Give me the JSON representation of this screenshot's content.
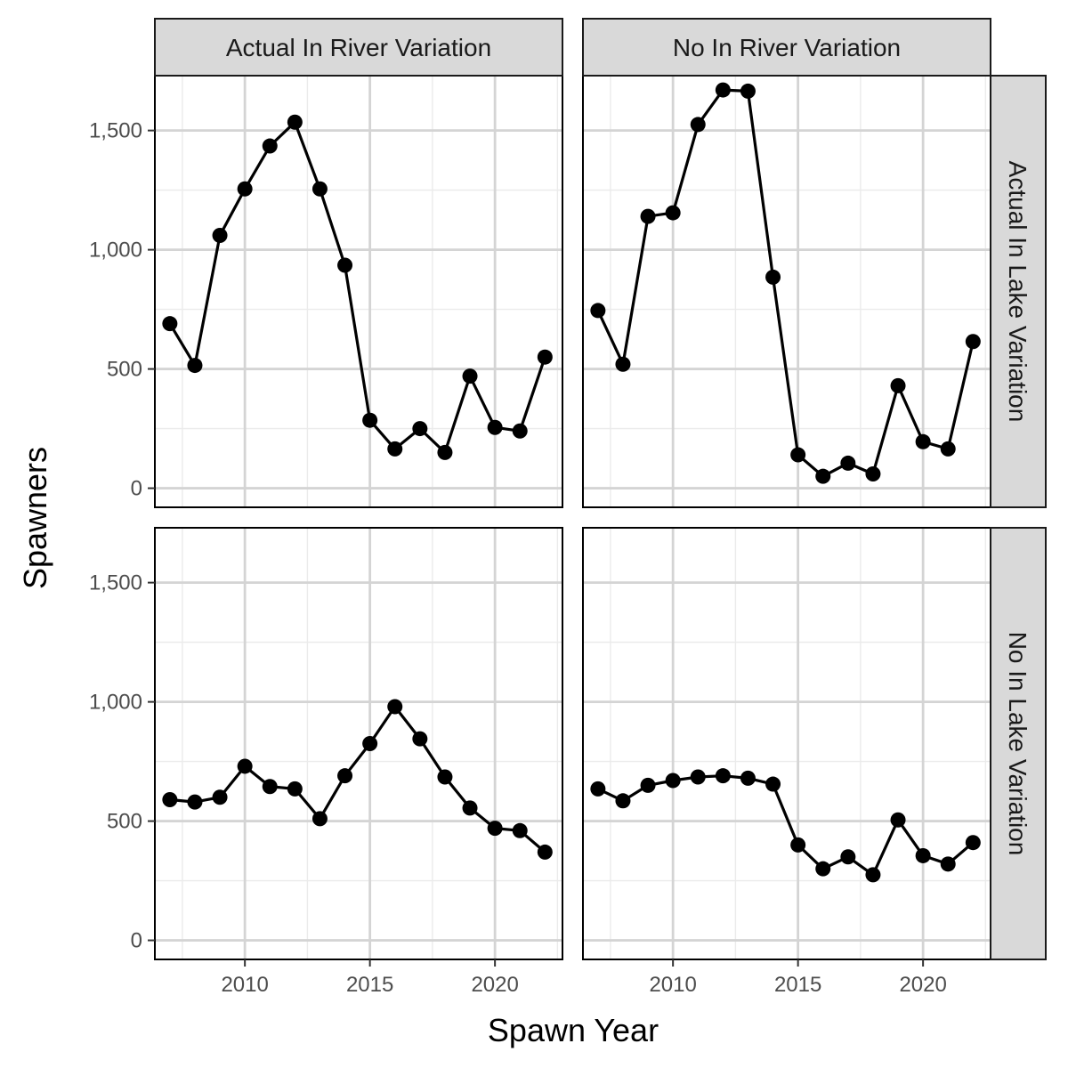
{
  "chart_data": {
    "type": "line",
    "facet": "grid",
    "xlabel": "Spawn Year",
    "ylabel": "Spawners",
    "xlim": [
      2006.4,
      2022.7
    ],
    "ylim": [
      -80,
      1730
    ],
    "x_ticks": [
      2010,
      2015,
      2020
    ],
    "x_tick_labels": [
      "2010",
      "2015",
      "2020"
    ],
    "y_ticks": [
      0,
      500,
      1000,
      1500
    ],
    "y_tick_labels": [
      "0",
      "500",
      "1,000",
      "1,500"
    ],
    "grid": true,
    "col_strips": [
      "Actual In River Variation",
      "No In River Variation"
    ],
    "row_strips": [
      "Actual In Lake Variation",
      "No In Lake Variation"
    ],
    "x": [
      2007,
      2008,
      2009,
      2010,
      2011,
      2012,
      2013,
      2014,
      2015,
      2016,
      2017,
      2018,
      2019,
      2020,
      2021,
      2022
    ],
    "panels": [
      {
        "row": 0,
        "col": 0,
        "values": [
          690,
          515,
          1060,
          1255,
          1435,
          1535,
          1255,
          935,
          285,
          165,
          250,
          150,
          470,
          255,
          240,
          550
        ]
      },
      {
        "row": 0,
        "col": 1,
        "values": [
          745,
          520,
          1140,
          1155,
          1525,
          1670,
          1665,
          885,
          140,
          50,
          105,
          60,
          430,
          195,
          165,
          615
        ]
      },
      {
        "row": 1,
        "col": 0,
        "values": [
          590,
          580,
          600,
          730,
          645,
          635,
          510,
          690,
          825,
          980,
          845,
          685,
          555,
          470,
          460,
          370
        ]
      },
      {
        "row": 1,
        "col": 1,
        "values": [
          635,
          585,
          650,
          670,
          685,
          690,
          680,
          655,
          400,
          300,
          350,
          275,
          505,
          355,
          320,
          410
        ]
      }
    ],
    "colors": {
      "line": "#000000",
      "panel_border": "#000000",
      "strip_fill": "#d9d9d9",
      "grid_major": "#d4d4d4",
      "grid_minor": "#ebebeb"
    }
  }
}
